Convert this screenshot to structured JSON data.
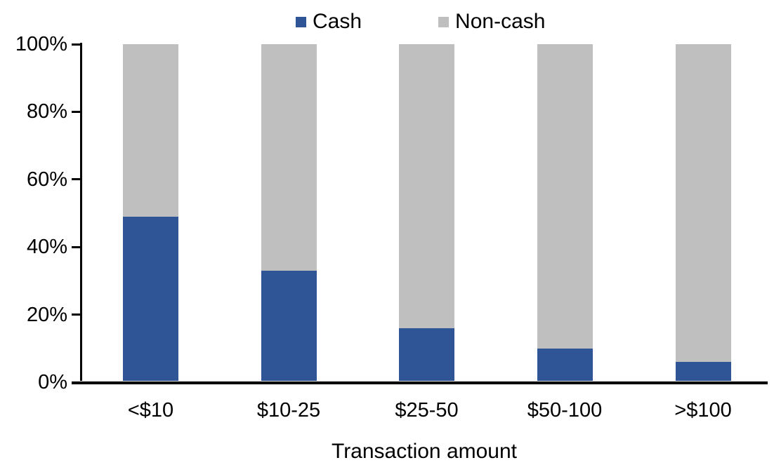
{
  "chart_data": {
    "type": "bar",
    "stacked": true,
    "title": "",
    "xlabel": "Transaction amount",
    "ylabel": "",
    "categories": [
      "<$10",
      "$10-25",
      "$25-50",
      "$50-100",
      ">$100"
    ],
    "series": [
      {
        "name": "Cash",
        "color": "#2F5597",
        "values": [
          49,
          33,
          16,
          10,
          6
        ]
      },
      {
        "name": "Non-cash",
        "color": "#BFBFBF",
        "values": [
          51,
          67,
          84,
          90,
          94
        ]
      }
    ],
    "ylim": [
      0,
      100
    ],
    "ytick_labels": [
      "0%",
      "20%",
      "40%",
      "60%",
      "80%",
      "100%"
    ],
    "grid": false,
    "legend_position": "top-center"
  }
}
